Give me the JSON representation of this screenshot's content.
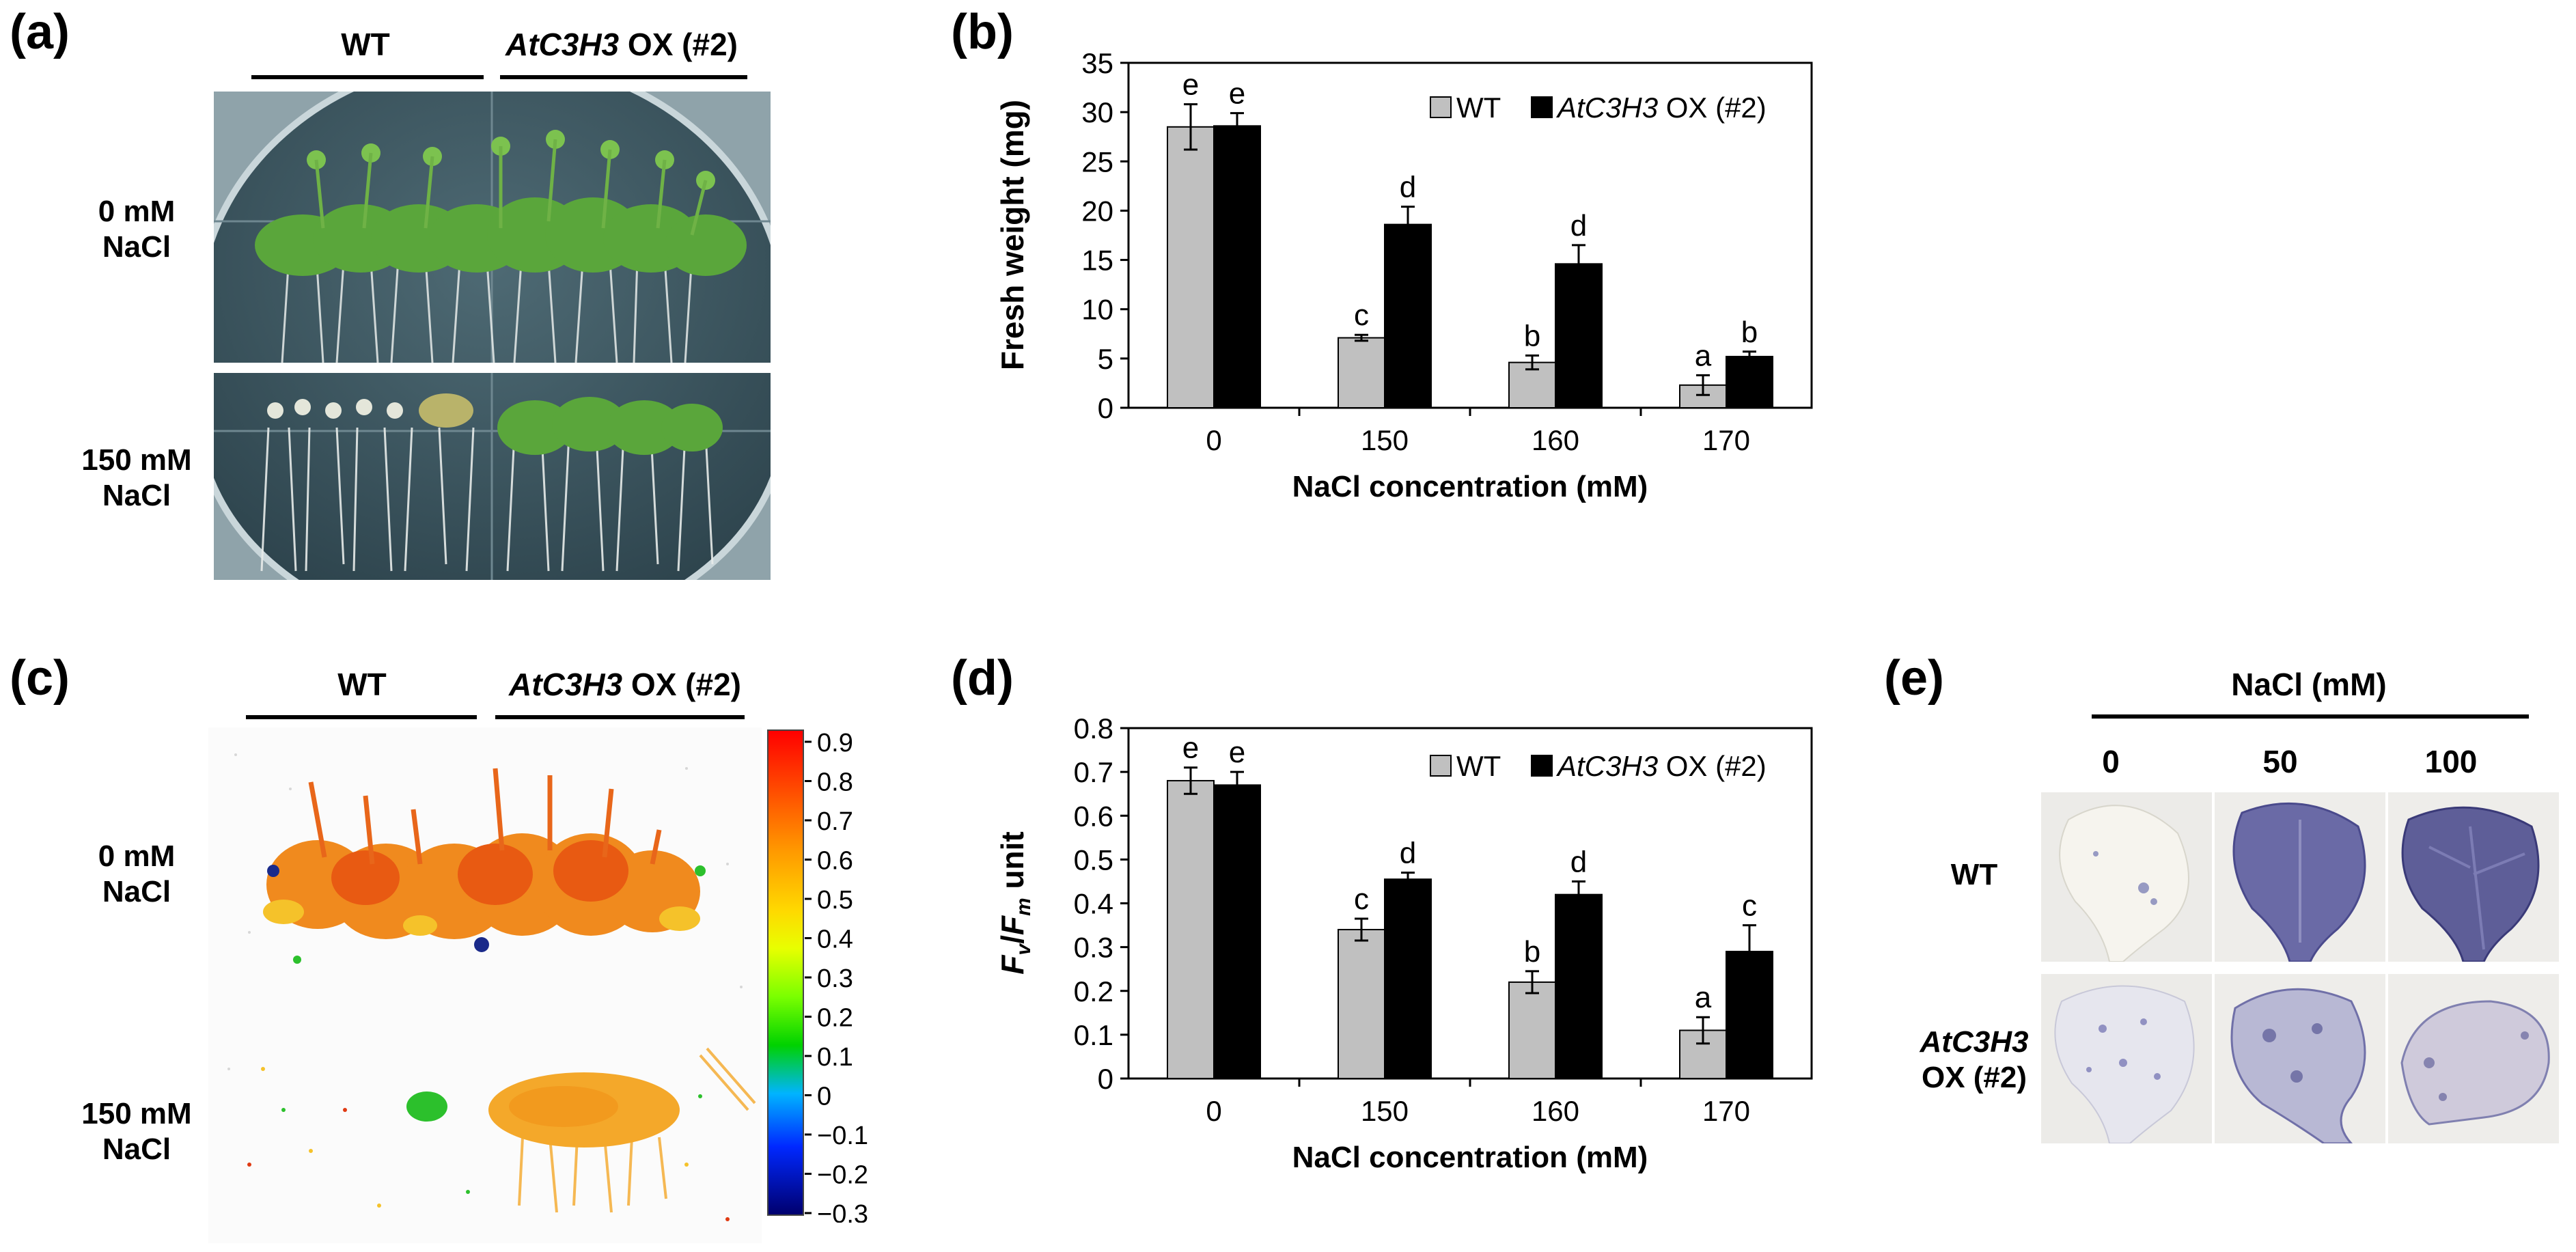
{
  "panel_labels": {
    "a": "(a)",
    "b": "(b)",
    "c": "(c)",
    "d": "(d)",
    "e": "(e)"
  },
  "panel_a": {
    "group_wt": "WT",
    "group_ox_gene": "AtC3H3",
    "group_ox_rest": " OX (#2)",
    "row1_line1": "0 mM",
    "row1_line2": "NaCl",
    "row2_line1": "150 mM",
    "row2_line2": "NaCl"
  },
  "panel_c": {
    "group_wt": "WT",
    "group_ox_gene": "AtC3H3",
    "group_ox_rest": " OX (#2)",
    "row1_line1": "0 mM",
    "row1_line2": "NaCl",
    "row2_line1": "150 mM",
    "row2_line2": "NaCl",
    "colorbar_ticks": [
      "0.9",
      "0.8",
      "0.7",
      "0.6",
      "0.5",
      "0.4",
      "0.3",
      "0.2",
      "0.1",
      "0",
      "−0.1",
      "−0.2",
      "−0.3"
    ]
  },
  "panel_e": {
    "header": "NaCl (mM)",
    "cols": [
      "0",
      "50",
      "100"
    ],
    "row1": "WT",
    "row2_line1": "AtC3H3",
    "row2_line2": "OX (#2)"
  },
  "colors": {
    "wt_bar": "#c0c0c0",
    "ox_bar": "#000000",
    "plate_bg": "#3b5560",
    "stain": "#4a4a8c"
  },
  "chart_data": [
    {
      "type": "bar",
      "panel": "b",
      "categories": [
        "0",
        "150",
        "160",
        "170"
      ],
      "series": [
        {
          "name": "WT",
          "values": [
            28.5,
            7.1,
            4.6,
            2.3
          ],
          "errors": [
            2.3,
            0.3,
            0.7,
            1.0
          ],
          "letters": [
            "e",
            "c",
            "b",
            "a"
          ]
        },
        {
          "name": "AtC3H3 OX (#2)",
          "values": [
            28.6,
            18.6,
            14.6,
            5.2
          ],
          "errors": [
            1.3,
            1.8,
            1.9,
            0.5
          ],
          "letters": [
            "e",
            "d",
            "d",
            "b"
          ]
        }
      ],
      "ylim": [
        0,
        35
      ],
      "yticks": [
        "0",
        "5",
        "10",
        "15",
        "20",
        "25",
        "30",
        "35"
      ],
      "ylabel": "Fresh weight (mg)",
      "xlabel": "NaCl concentration (mM)",
      "legend": {
        "wt": "WT",
        "ox_gene": "AtC3H3",
        "ox_rest": " OX (#2)"
      }
    },
    {
      "type": "bar",
      "panel": "d",
      "categories": [
        "0",
        "150",
        "160",
        "170"
      ],
      "series": [
        {
          "name": "WT",
          "values": [
            0.68,
            0.34,
            0.22,
            0.11
          ],
          "errors": [
            0.03,
            0.025,
            0.025,
            0.03
          ],
          "letters": [
            "e",
            "c",
            "b",
            "a"
          ]
        },
        {
          "name": "AtC3H3 OX (#2)",
          "values": [
            0.67,
            0.455,
            0.42,
            0.29
          ],
          "errors": [
            0.03,
            0.015,
            0.03,
            0.06
          ],
          "letters": [
            "e",
            "d",
            "d",
            "c"
          ]
        }
      ],
      "ylim": [
        0,
        0.8
      ],
      "yticks": [
        "0",
        "0.1",
        "0.2",
        "0.3",
        "0.4",
        "0.5",
        "0.6",
        "0.7",
        "0.8"
      ],
      "ylabel_fv": "F",
      "ylabel_fv_sub": "v",
      "ylabel_slash": "/",
      "ylabel_fm": "F",
      "ylabel_fm_sub": "m",
      "ylabel_unit": " unit",
      "xlabel": "NaCl concentration (mM)",
      "legend": {
        "wt": "WT",
        "ox_gene": "AtC3H3",
        "ox_rest": " OX (#2)"
      }
    }
  ]
}
